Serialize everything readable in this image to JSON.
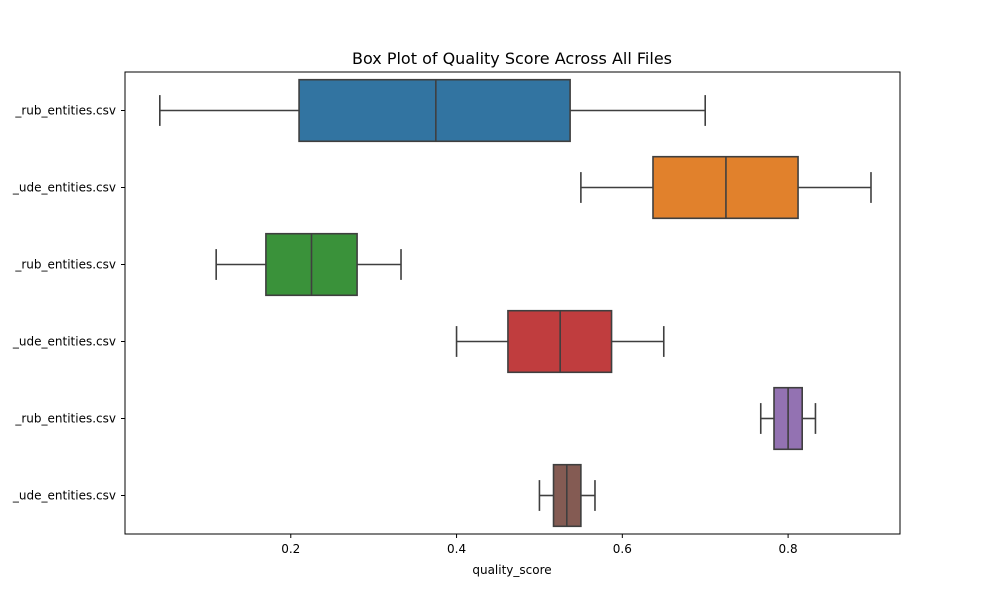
{
  "chart_data": {
    "type": "box",
    "title": "Box Plot of Quality Score Across All Files",
    "xlabel": "quality_score",
    "ylabel": "",
    "xlim": [
      0.0,
      0.935
    ],
    "xticks": [
      0.2,
      0.4,
      0.6,
      0.8
    ],
    "xtick_labels": [
      "0.2",
      "0.4",
      "0.6",
      "0.8"
    ],
    "grid": false,
    "categories": [
      "_rub_entities.csv",
      "_ude_entities.csv",
      "_rub_entities.csv",
      "_ude_entities.csv",
      "_rub_entities.csv",
      "_ude_entities.csv"
    ],
    "boxes": [
      {
        "whisker_low": 0.042,
        "q1": 0.21,
        "median": 0.375,
        "q3": 0.537,
        "whisker_high": 0.7,
        "color": "#3274a1"
      },
      {
        "whisker_low": 0.55,
        "q1": 0.637,
        "median": 0.725,
        "q3": 0.812,
        "whisker_high": 0.9,
        "color": "#e1812c"
      },
      {
        "whisker_low": 0.11,
        "q1": 0.17,
        "median": 0.225,
        "q3": 0.28,
        "whisker_high": 0.333,
        "color": "#3a923a"
      },
      {
        "whisker_low": 0.4,
        "q1": 0.462,
        "median": 0.525,
        "q3": 0.587,
        "whisker_high": 0.65,
        "color": "#c03d3e"
      },
      {
        "whisker_low": 0.767,
        "q1": 0.783,
        "median": 0.8,
        "q3": 0.817,
        "whisker_high": 0.833,
        "color": "#9372b2"
      },
      {
        "whisker_low": 0.5,
        "q1": 0.517,
        "median": 0.533,
        "q3": 0.55,
        "whisker_high": 0.567,
        "color": "#845b53"
      }
    ]
  }
}
